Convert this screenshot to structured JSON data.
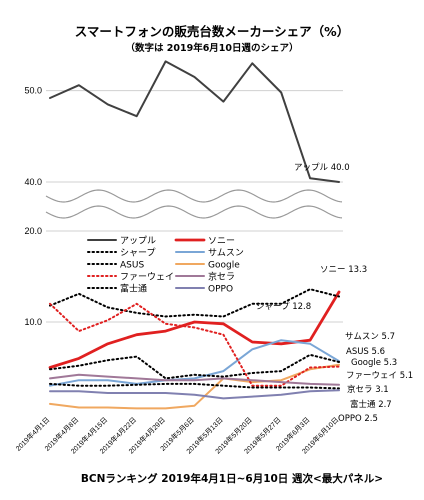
{
  "chart_data": {
    "type": "line",
    "title": "スマートフォンの販売台数メーカーシェア（%）",
    "subtitle": "（数字は 2019年6月10日週のシェア）",
    "footer": "BCNランキング 2019年4月1日~6月10日 週次<最大パネル>",
    "x": [
      "2019年4月1日",
      "2019年4月8日",
      "2019年4月15日",
      "2019年4月22日",
      "2019年4月29日",
      "2019年5月6日",
      "2019年5月13日",
      "2019年5月20日",
      "2019年5月27日",
      "2019年6月3日",
      "2019年6月10日"
    ],
    "upper_axis": {
      "ylim": [
        40,
        55
      ],
      "ticks": [
        "50.0",
        "40.0"
      ]
    },
    "lower_axis": {
      "ylim": [
        0,
        20
      ],
      "ticks": [
        "20.0",
        "10.0"
      ]
    },
    "legend": {
      "placement": "top",
      "columns": 2
    },
    "series": [
      {
        "name": "アップル",
        "color": "#404040",
        "style": "solid",
        "axis": "upper",
        "values": [
          49.2,
          50.6,
          48.5,
          47.2,
          53.2,
          51.5,
          48.8,
          53.0,
          49.8,
          40.4,
          40.0
        ],
        "end_label": "アップル",
        "end_value": "40.0"
      },
      {
        "name": "ソニー",
        "color": "#e02020",
        "style": "solid",
        "axis": "lower",
        "values": [
          5.0,
          6.0,
          7.6,
          8.6,
          9.0,
          10.0,
          9.8,
          7.8,
          7.6,
          8.0,
          13.3
        ],
        "end_label": "ソニー",
        "end_value": "13.3"
      },
      {
        "name": "シャープ",
        "color": "#000000",
        "style": "dotted",
        "axis": "lower",
        "values": [
          11.8,
          13.1,
          11.6,
          11.0,
          10.6,
          10.8,
          10.6,
          12.0,
          12.0,
          13.6,
          12.8
        ],
        "end_label": "シャープ",
        "end_value": "12.8"
      },
      {
        "name": "サムスン",
        "color": "#7aa6d6",
        "style": "solid",
        "axis": "lower",
        "values": [
          3.0,
          3.6,
          3.6,
          3.2,
          3.6,
          3.8,
          4.6,
          7.0,
          8.0,
          7.6,
          5.7
        ],
        "end_label": "サムスン",
        "end_value": "5.7"
      },
      {
        "name": "ASUS",
        "color": "#000000",
        "style": "dotted",
        "axis": "lower",
        "values": [
          4.8,
          5.2,
          5.8,
          6.2,
          3.8,
          4.2,
          4.0,
          4.4,
          4.6,
          6.4,
          5.6
        ],
        "end_label": "ASUS",
        "end_value": "5.6"
      },
      {
        "name": "Google",
        "color": "#f0a860",
        "style": "solid",
        "axis": "lower",
        "values": [
          1.0,
          0.6,
          0.6,
          0.5,
          0.5,
          0.8,
          3.8,
          3.4,
          3.6,
          4.8,
          5.3
        ],
        "end_label": "Google",
        "end_value": "5.3"
      },
      {
        "name": "ファーウェイ",
        "color": "#e02020",
        "style": "dotted",
        "axis": "lower",
        "values": [
          12.0,
          9.0,
          10.2,
          12.0,
          9.8,
          9.4,
          8.6,
          3.0,
          3.0,
          5.0,
          5.1
        ],
        "end_label": "ファーウェイ",
        "end_value": "5.1"
      },
      {
        "name": "京セラ",
        "color": "#a07898",
        "style": "solid",
        "axis": "lower",
        "values": [
          3.8,
          4.2,
          4.0,
          3.8,
          3.6,
          3.6,
          3.8,
          3.6,
          3.4,
          3.2,
          3.1
        ],
        "end_label": "京セラ",
        "end_value": "3.1"
      },
      {
        "name": "富士通",
        "color": "#000000",
        "style": "dotted",
        "axis": "lower",
        "values": [
          3.2,
          3.0,
          3.0,
          3.1,
          3.2,
          3.2,
          3.0,
          2.8,
          2.8,
          2.8,
          2.7
        ],
        "end_label": "富士通",
        "end_value": "2.7"
      },
      {
        "name": "OPPO",
        "color": "#8080b0",
        "style": "solid",
        "axis": "lower",
        "values": [
          2.4,
          2.4,
          2.2,
          2.2,
          2.2,
          2.0,
          1.6,
          1.8,
          2.0,
          2.4,
          2.5
        ],
        "end_label": "OPPO",
        "end_value": "2.5"
      }
    ]
  }
}
